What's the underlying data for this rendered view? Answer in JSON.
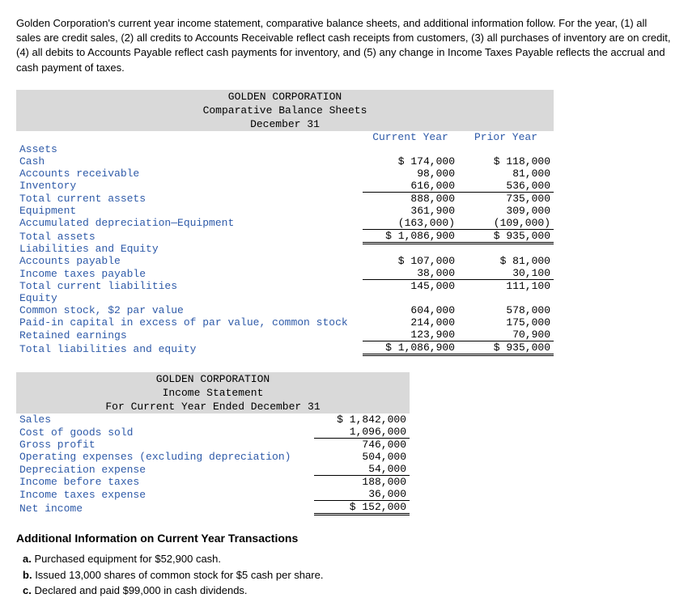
{
  "intro": "Golden Corporation's current year income statement, comparative balance sheets, and additional information follow. For the year, (1) all sales are credit sales, (2) all credits to Accounts Receivable reflect cash receipts from customers, (3) all purchases of inventory are on credit, (4) all debits to Accounts Payable reflect cash payments for inventory, and (5) any change in Income Taxes Payable reflects the accrual and cash payment of taxes.",
  "balance_sheet": {
    "title1": "GOLDEN CORPORATION",
    "title2": "Comparative Balance Sheets",
    "title3": "December 31",
    "col_current": "Current Year",
    "col_prior": "Prior Year",
    "sections": {
      "assets_header": "Assets",
      "liab_header": "Liabilities and Equity",
      "equity_header": "Equity"
    },
    "rows": {
      "cash": {
        "label": "Cash",
        "cur": "$ 174,000",
        "pri": "$ 118,000"
      },
      "ar": {
        "label": "Accounts receivable",
        "cur": "98,000",
        "pri": "81,000"
      },
      "inventory": {
        "label": "Inventory",
        "cur": "616,000",
        "pri": "536,000"
      },
      "tca": {
        "label": "Total current assets",
        "cur": "888,000",
        "pri": "735,000"
      },
      "equipment": {
        "label": "Equipment",
        "cur": "361,900",
        "pri": "309,000"
      },
      "accdep": {
        "label": "Accumulated depreciation—Equipment",
        "cur": "(163,000)",
        "pri": "(109,000)"
      },
      "ta": {
        "label": "Total assets",
        "cur": "$ 1,086,900",
        "pri": "$ 935,000"
      },
      "ap": {
        "label": "Accounts payable",
        "cur": "$ 107,000",
        "pri": "$ 81,000"
      },
      "itp": {
        "label": "Income taxes payable",
        "cur": "38,000",
        "pri": "30,100"
      },
      "tcl": {
        "label": "Total current liabilities",
        "cur": "145,000",
        "pri": "111,100"
      },
      "cs": {
        "label": "Common stock, $2 par value",
        "cur": "604,000",
        "pri": "578,000"
      },
      "pic": {
        "label": "Paid-in capital in excess of par value, common stock",
        "cur": "214,000",
        "pri": "175,000"
      },
      "re": {
        "label": "Retained earnings",
        "cur": "123,900",
        "pri": "70,900"
      },
      "tle": {
        "label": "Total liabilities and equity",
        "cur": "$ 1,086,900",
        "pri": "$ 935,000"
      }
    }
  },
  "income_statement": {
    "title1": "GOLDEN CORPORATION",
    "title2": "Income Statement",
    "title3": "For Current Year Ended December 31",
    "rows": {
      "sales": {
        "label": "Sales",
        "val": "$ 1,842,000"
      },
      "cogs": {
        "label": "Cost of goods sold",
        "val": "1,096,000"
      },
      "gp": {
        "label": "Gross profit",
        "val": "746,000"
      },
      "opex": {
        "label": "Operating expenses (excluding depreciation)",
        "val": "504,000"
      },
      "dep": {
        "label": "Depreciation expense",
        "val": "54,000"
      },
      "ibt": {
        "label": "Income before taxes",
        "val": "188,000"
      },
      "ite": {
        "label": "Income taxes expense",
        "val": "36,000"
      },
      "ni": {
        "label": "Net income",
        "val": "$ 152,000"
      }
    }
  },
  "additional": {
    "heading": "Additional Information on Current Year Transactions",
    "a_label": "a.",
    "a_text": "Purchased equipment for $52,900 cash.",
    "b_label": "b.",
    "b_text": "Issued 13,000 shares of common stock for $5 cash per share.",
    "c_label": "c.",
    "c_text": "Declared and paid $99,000 in cash dividends."
  }
}
